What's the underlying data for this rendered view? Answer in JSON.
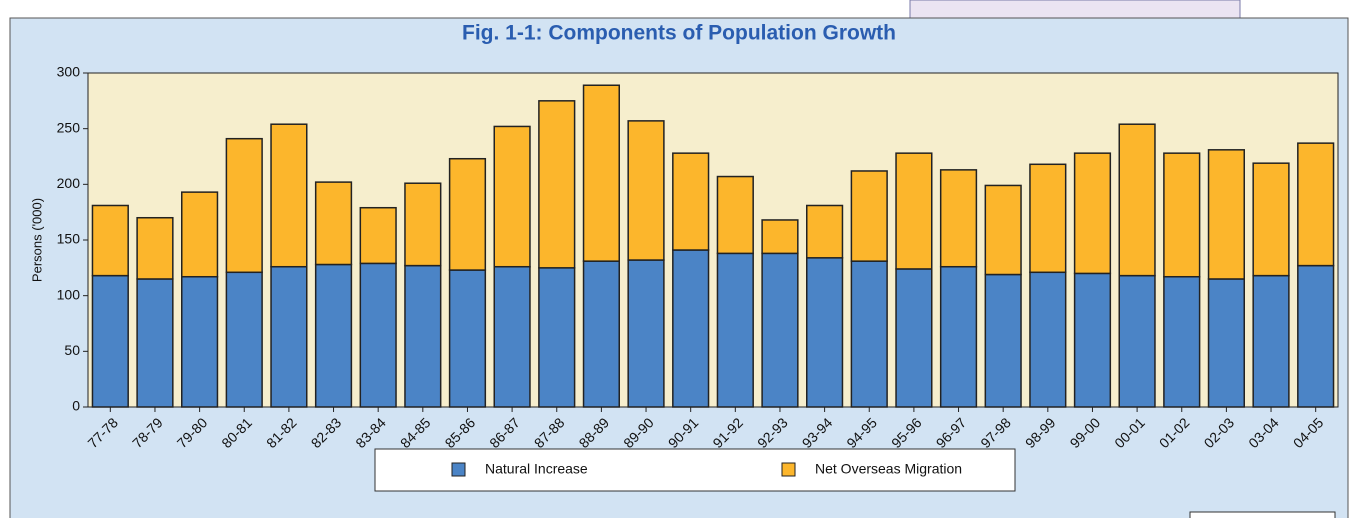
{
  "chart_data": {
    "type": "stacked_bar",
    "title": "Fig. 1-1:  Components of Population Growth",
    "y_label": "Persons ('000)",
    "categories": [
      "77-78",
      "78-79",
      "79-80",
      "80-81",
      "81-82",
      "82-83",
      "83-84",
      "84-85",
      "85-86",
      "86-87",
      "87-88",
      "88-89",
      "89-90",
      "90-91",
      "91-92",
      "92-93",
      "93-94",
      "94-95",
      "95-96",
      "96-97",
      "97-98",
      "98-99",
      "99-00",
      "00-01",
      "01-02",
      "02-03",
      "03-04",
      "04-05"
    ],
    "series": [
      {
        "name": "Natural Increase",
        "color": "#4b84c6",
        "values": [
          118,
          115,
          117,
          121,
          126,
          128,
          129,
          127,
          123,
          126,
          125,
          131,
          132,
          141,
          138,
          138,
          134,
          131,
          124,
          126,
          119,
          121,
          120,
          118,
          117,
          115,
          118,
          127
        ]
      },
      {
        "name": "Net Overseas Migration",
        "color": "#fcb62c",
        "values": [
          63,
          55,
          76,
          120,
          128,
          74,
          50,
          74,
          100,
          126,
          150,
          158,
          125,
          87,
          69,
          30,
          47,
          81,
          104,
          87,
          80,
          97,
          108,
          136,
          111,
          116,
          101,
          110
        ]
      }
    ],
    "ylim": [
      0,
      300
    ],
    "yticks": [
      0,
      50,
      100,
      150,
      200,
      250,
      300
    ],
    "legend": "bottom"
  }
}
